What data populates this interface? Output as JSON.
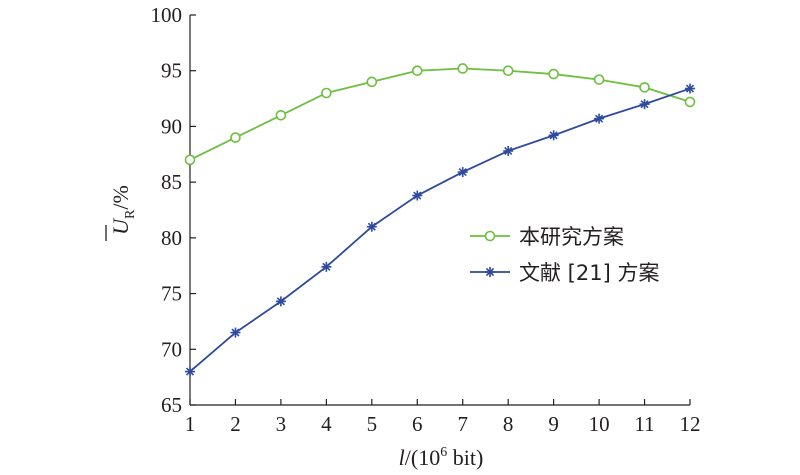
{
  "chart_data": {
    "type": "line",
    "title": "",
    "xlabel_italic": "l",
    "xlabel_rest": "/(10",
    "xlabel_sup": "6",
    "xlabel_unit": " bit)",
    "ylabel_main": "U",
    "ylabel_sub": "R",
    "ylabel_rest": "/%",
    "x": [
      1,
      2,
      3,
      4,
      5,
      6,
      7,
      8,
      9,
      10,
      11,
      12
    ],
    "xlim": [
      1,
      12
    ],
    "ylim": [
      65,
      100
    ],
    "yticks": [
      65,
      70,
      75,
      80,
      85,
      90,
      95,
      100
    ],
    "grid": false,
    "legend_position": "center-right",
    "series": [
      {
        "name": "本研究方案",
        "marker": "circle",
        "color": "#6cbf3f",
        "values": [
          87.0,
          89.0,
          91.0,
          93.0,
          94.0,
          95.0,
          95.2,
          95.0,
          94.7,
          94.2,
          93.5,
          92.2
        ]
      },
      {
        "name": "文献 [21] 方案",
        "marker": "asterisk",
        "color": "#2e4a9e",
        "values": [
          68.0,
          71.5,
          74.3,
          77.4,
          81.0,
          83.8,
          85.9,
          87.8,
          89.2,
          90.7,
          92.0,
          93.4
        ]
      }
    ]
  }
}
